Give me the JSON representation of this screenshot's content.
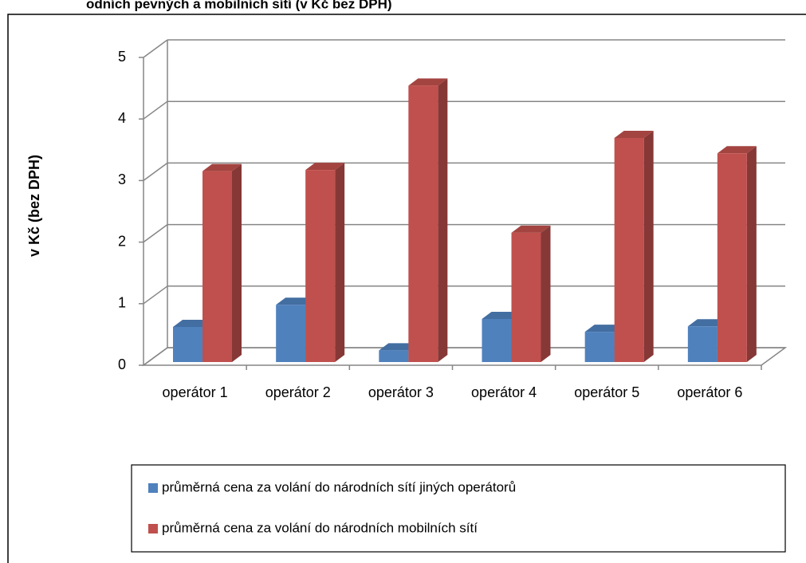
{
  "chart_data": {
    "type": "bar3d",
    "title": "odních pevných a mobilních sítí (v Kč bez DPH)",
    "y_label": "v Kč (bez DPH)",
    "categories": [
      "operátor 1",
      "operátor 2",
      "operátor 3",
      "operátor 4",
      "operátor 5",
      "operátor 6"
    ],
    "series": [
      {
        "name": "průměrná cena za volání do národních sítí jiných operátorů",
        "color": "#4f81bd",
        "values": [
          0.57,
          0.93,
          0.19,
          0.7,
          0.49,
          0.58
        ]
      },
      {
        "name": "průměrná cena za volání do národních mobilních sítí",
        "color": "#c0504d",
        "values": [
          3.1,
          3.12,
          4.49,
          2.1,
          3.64,
          3.39
        ]
      }
    ],
    "ylim": [
      0,
      5
    ],
    "yticks": [
      0,
      1,
      2,
      3,
      4,
      5
    ],
    "grid": true
  }
}
